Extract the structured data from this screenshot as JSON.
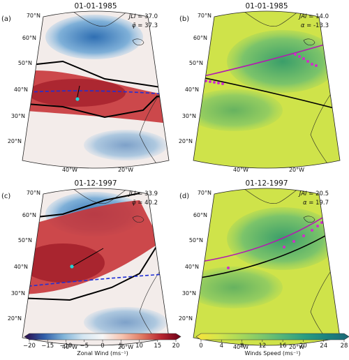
{
  "chart_data": [
    {
      "type": "heatmap",
      "panel_label": "(a)",
      "title": "01-01-1985",
      "field": "zonal_wind",
      "latitude_ticks": [
        "70°N",
        "60°N",
        "50°N",
        "40°N",
        "30°N",
        "20°N"
      ],
      "longitude_ticks": [
        "40°W",
        "20°W"
      ],
      "index_lines": [
        {
          "symbol": "JLI",
          "text": " = 37.0",
          "value": 37.0
        },
        {
          "symbol": "φ̄",
          "text": " = 37.3",
          "value": 37.3
        }
      ]
    },
    {
      "type": "heatmap",
      "panel_label": "(b)",
      "title": "01-01-1985",
      "field": "wind_speed",
      "latitude_ticks": [
        "70°N",
        "60°N",
        "50°N",
        "40°N",
        "30°N",
        "20°N"
      ],
      "longitude_ticks": [
        "40°W",
        "20°W"
      ],
      "index_lines": [
        {
          "symbol": "JAI",
          "text": " = 14.0",
          "value": 14.0
        },
        {
          "symbol": "α",
          "text": " = -13.3",
          "value": -13.3
        }
      ]
    },
    {
      "type": "heatmap",
      "panel_label": "(c)",
      "title": "01-12-1997",
      "field": "zonal_wind",
      "latitude_ticks": [
        "70°N",
        "60°N",
        "50°N",
        "40°N",
        "30°N",
        "20°N"
      ],
      "longitude_ticks": [
        "40°W",
        "20°W"
      ],
      "index_lines": [
        {
          "symbol": "JLI",
          "text": " = 33.9",
          "value": 33.9
        },
        {
          "symbol": "φ̄",
          "text": " = 40.2",
          "value": 40.2
        }
      ]
    },
    {
      "type": "heatmap",
      "panel_label": "(d)",
      "title": "01-12-1997",
      "field": "wind_speed",
      "latitude_ticks": [
        "70°N",
        "60°N",
        "50°N",
        "40°N",
        "30°N",
        "20°N"
      ],
      "longitude_ticks": [
        "40°W",
        "20°W"
      ],
      "index_lines": [
        {
          "symbol": "JAI",
          "text": " = 20.5",
          "value": 20.5
        },
        {
          "symbol": "α",
          "text": " = 19.7",
          "value": 19.7
        }
      ]
    }
  ],
  "colorbars": [
    {
      "label": "Zonal Wind (ms⁻¹)",
      "range": [
        -20,
        20
      ],
      "ticks": [
        "−20",
        "−15",
        "−10",
        "−5",
        "0",
        "5",
        "10",
        "15",
        "20"
      ],
      "colors": [
        "#2b0a4a",
        "#2f5da8",
        "#7fb3d8",
        "#d4e6f2",
        "#f7f7f7",
        "#f6c3b0",
        "#e07a63",
        "#b8252f",
        "#6b0018"
      ]
    },
    {
      "label": "Winds Speed (ms⁻¹)",
      "range": [
        0,
        28
      ],
      "ticks": [
        "0",
        "4",
        "8",
        "12",
        "16",
        "20",
        "24",
        "28"
      ],
      "colors": [
        "#f7e33a",
        "#d6e64a",
        "#a9d95a",
        "#7ec86b",
        "#51b37a",
        "#2a9c81",
        "#1b827f",
        "#1d6877"
      ]
    }
  ]
}
